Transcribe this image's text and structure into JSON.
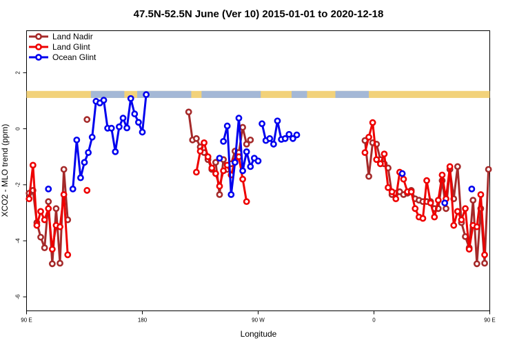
{
  "chart_data": {
    "type": "line",
    "title": "47.5N-52.5N June (Ver 10)   2015-01-01 to 2020-12-18",
    "xlabel": "Longitude",
    "ylabel": "XCO2 - MLO trend (ppm)",
    "xlim": [
      90,
      450
    ],
    "ylim": [
      -6.5,
      3.5
    ],
    "x_ticks": [
      {
        "value": 90,
        "label": "90 E"
      },
      {
        "value": 180,
        "label": "180"
      },
      {
        "value": 270,
        "label": "90 W"
      },
      {
        "value": 360,
        "label": "0"
      },
      {
        "value": 450,
        "label": "90 E"
      },
      {
        "value": 540,
        "label": "180"
      }
    ],
    "y_ticks": [
      {
        "value": 2,
        "label": "2"
      },
      {
        "value": 0,
        "label": "0"
      },
      {
        "value": -2,
        "label": "-2"
      },
      {
        "value": -4,
        "label": "-4"
      },
      {
        "value": -6,
        "label": "-6"
      }
    ],
    "legend_position": "top-left",
    "land_ocean_band": {
      "ymin": 1.1,
      "ymax": 1.35,
      "land_color": "#f2d27a",
      "ocean_color": "#a4b8d6",
      "ocean_ranges": [
        [
          140,
          166
        ],
        [
          176,
          218
        ],
        [
          226,
          272
        ],
        [
          296,
          308
        ],
        [
          330,
          356
        ],
        [
          488,
          509
        ],
        [
          516,
          520
        ],
        [
          536,
          540
        ]
      ]
    },
    "series": [
      {
        "name": "Land Nadir",
        "color": "#a52a2a",
        "segments": [
          [
            [
              92,
              -2.3
            ],
            [
              95,
              -2.2
            ],
            [
              98,
              -3.35
            ],
            [
              101,
              -3.87
            ],
            [
              104,
              -4.25
            ],
            [
              107,
              -2.6
            ],
            [
              110,
              -4.82
            ],
            [
              113,
              -2.85
            ],
            [
              116,
              -4.8
            ],
            [
              119,
              -1.45
            ],
            [
              122,
              -3.25
            ]
          ],
          [
            [
              137,
              0.33
            ]
          ],
          [
            [
              216,
              0.6
            ],
            [
              219,
              -0.4
            ],
            [
              222,
              -0.35
            ],
            [
              225,
              -0.65
            ],
            [
              228,
              -0.85
            ],
            [
              231,
              -1.1
            ],
            [
              234,
              -1.45
            ],
            [
              237,
              -1.2
            ],
            [
              240,
              -2.35
            ],
            [
              243,
              -1.1
            ],
            [
              246,
              -1.45
            ],
            [
              249,
              -1.25
            ],
            [
              252,
              -0.8
            ],
            [
              255,
              -0.85
            ],
            [
              258,
              0.05
            ],
            [
              261,
              -0.55
            ],
            [
              264,
              -0.4
            ]
          ],
          [
            [
              353,
              -0.42
            ],
            [
              356,
              -1.7
            ],
            [
              359,
              -0.5
            ],
            [
              362,
              -0.55
            ],
            [
              365,
              -1.1
            ],
            [
              368,
              -1.25
            ],
            [
              371,
              -1.4
            ],
            [
              374,
              -2.35
            ],
            [
              377,
              -2.3
            ],
            [
              380,
              -2.25
            ],
            [
              383,
              -2.35
            ],
            [
              386,
              -2.3
            ],
            [
              389,
              -2.2
            ],
            [
              392,
              -2.5
            ],
            [
              395,
              -2.55
            ],
            [
              398,
              -2.6
            ],
            [
              401,
              -2.6
            ],
            [
              404,
              -2.6
            ],
            [
              407,
              -2.85
            ],
            [
              410,
              -2.85
            ],
            [
              413,
              -1.85
            ],
            [
              416,
              -2.85
            ],
            [
              419,
              -1.45
            ],
            [
              422,
              -2.5
            ],
            [
              425,
              -1.35
            ],
            [
              428,
              -3.35
            ],
            [
              431,
              -3.85
            ],
            [
              434,
              -4.25
            ],
            [
              437,
              -2.55
            ],
            [
              440,
              -4.82
            ],
            [
              443,
              -2.85
            ],
            [
              446,
              -4.8
            ],
            [
              449,
              -1.45
            ],
            [
              452,
              -3.25
            ]
          ],
          [
            [
              467,
              0.33
            ]
          ]
        ]
      },
      {
        "name": "Land Glint",
        "color": "#ee0000",
        "segments": [
          [
            [
              92,
              -2.5
            ],
            [
              95,
              -1.3
            ],
            [
              98,
              -3.45
            ],
            [
              101,
              -2.95
            ],
            [
              104,
              -3.25
            ],
            [
              107,
              -2.85
            ],
            [
              110,
              -4.3
            ],
            [
              113,
              -3.45
            ],
            [
              116,
              -3.5
            ],
            [
              119,
              -2.35
            ],
            [
              122,
              -4.5
            ]
          ],
          [
            [
              137,
              -2.2
            ]
          ],
          [
            [
              222,
              -1.55
            ],
            [
              225,
              -0.8
            ],
            [
              228,
              -0.5
            ],
            [
              231,
              -1.0
            ],
            [
              234,
              -1.4
            ],
            [
              237,
              -1.6
            ],
            [
              240,
              -2.05
            ],
            [
              243,
              -1.5
            ],
            [
              246,
              -1.3
            ],
            [
              249,
              -1.65
            ],
            [
              252,
              -1.15
            ],
            [
              255,
              -1.0
            ],
            [
              258,
              -1.8
            ],
            [
              261,
              -2.6
            ]
          ],
          [
            [
              353,
              -0.85
            ],
            [
              356,
              -0.3
            ],
            [
              359,
              0.22
            ],
            [
              362,
              -1.1
            ],
            [
              365,
              -1.25
            ],
            [
              368,
              -0.9
            ],
            [
              371,
              -2.1
            ],
            [
              374,
              -2.25
            ],
            [
              377,
              -2.5
            ],
            [
              380,
              -1.55
            ],
            [
              383,
              -1.8
            ],
            [
              386,
              -2.25
            ],
            [
              389,
              -2.25
            ],
            [
              392,
              -2.85
            ],
            [
              395,
              -3.15
            ],
            [
              398,
              -3.2
            ],
            [
              401,
              -1.85
            ],
            [
              404,
              -2.65
            ],
            [
              407,
              -3.15
            ],
            [
              410,
              -2.55
            ],
            [
              413,
              -1.65
            ],
            [
              416,
              -2.5
            ],
            [
              419,
              -1.35
            ],
            [
              422,
              -3.45
            ],
            [
              425,
              -2.95
            ],
            [
              428,
              -3.25
            ],
            [
              431,
              -2.85
            ],
            [
              434,
              -4.3
            ],
            [
              437,
              -3.45
            ],
            [
              440,
              -3.5
            ],
            [
              443,
              -2.35
            ],
            [
              446,
              -4.5
            ]
          ],
          [
            [
              467,
              -2.2
            ]
          ]
        ]
      },
      {
        "name": "Ocean Glint",
        "color": "#0000ee",
        "segments": [
          [
            [
              107,
              -2.15
            ]
          ],
          [
            [
              126,
              -2.15
            ],
            [
              129,
              -0.4
            ],
            [
              132,
              -1.75
            ],
            [
              135,
              -1.2
            ],
            [
              138,
              -0.85
            ],
            [
              141,
              -0.3
            ],
            [
              144,
              0.98
            ],
            [
              147,
              0.92
            ],
            [
              150,
              1.02
            ],
            [
              153,
              0.02
            ],
            [
              156,
              0.02
            ],
            [
              159,
              -0.82
            ],
            [
              162,
              0.07
            ],
            [
              165,
              0.38
            ],
            [
              168,
              0.03
            ],
            [
              171,
              1.08
            ],
            [
              174,
              0.53
            ],
            [
              177,
              0.23
            ],
            [
              180,
              -0.12
            ],
            [
              183,
              1.22
            ]
          ],
          [
            [
              240,
              -1.05
            ]
          ],
          [
            [
              243,
              -0.45
            ],
            [
              246,
              0.1
            ],
            [
              249,
              -2.35
            ],
            [
              252,
              -1.2
            ],
            [
              255,
              0.38
            ],
            [
              258,
              -1.5
            ],
            [
              261,
              -0.82
            ],
            [
              264,
              -1.35
            ],
            [
              267,
              -1.05
            ],
            [
              270,
              -1.15
            ]
          ],
          [
            [
              273,
              0.18
            ],
            [
              276,
              -0.42
            ],
            [
              279,
              -0.35
            ],
            [
              282,
              -0.55
            ],
            [
              285,
              0.28
            ],
            [
              288,
              -0.38
            ],
            [
              291,
              -0.35
            ],
            [
              294,
              -0.2
            ],
            [
              297,
              -0.35
            ],
            [
              300,
              -0.22
            ]
          ],
          [
            [
              382,
              -1.6
            ]
          ],
          [
            [
              415,
              -2.65
            ]
          ],
          [
            [
              436,
              -2.15
            ]
          ],
          [
            [
              456,
              -2.15
            ],
            [
              459,
              -0.4
            ],
            [
              462,
              -1.75
            ],
            [
              465,
              -1.2
            ],
            [
              468,
              -0.85
            ],
            [
              471,
              -0.3
            ],
            [
              474,
              0.98
            ],
            [
              477,
              0.92
            ],
            [
              480,
              1.02
            ]
          ]
        ]
      }
    ]
  }
}
